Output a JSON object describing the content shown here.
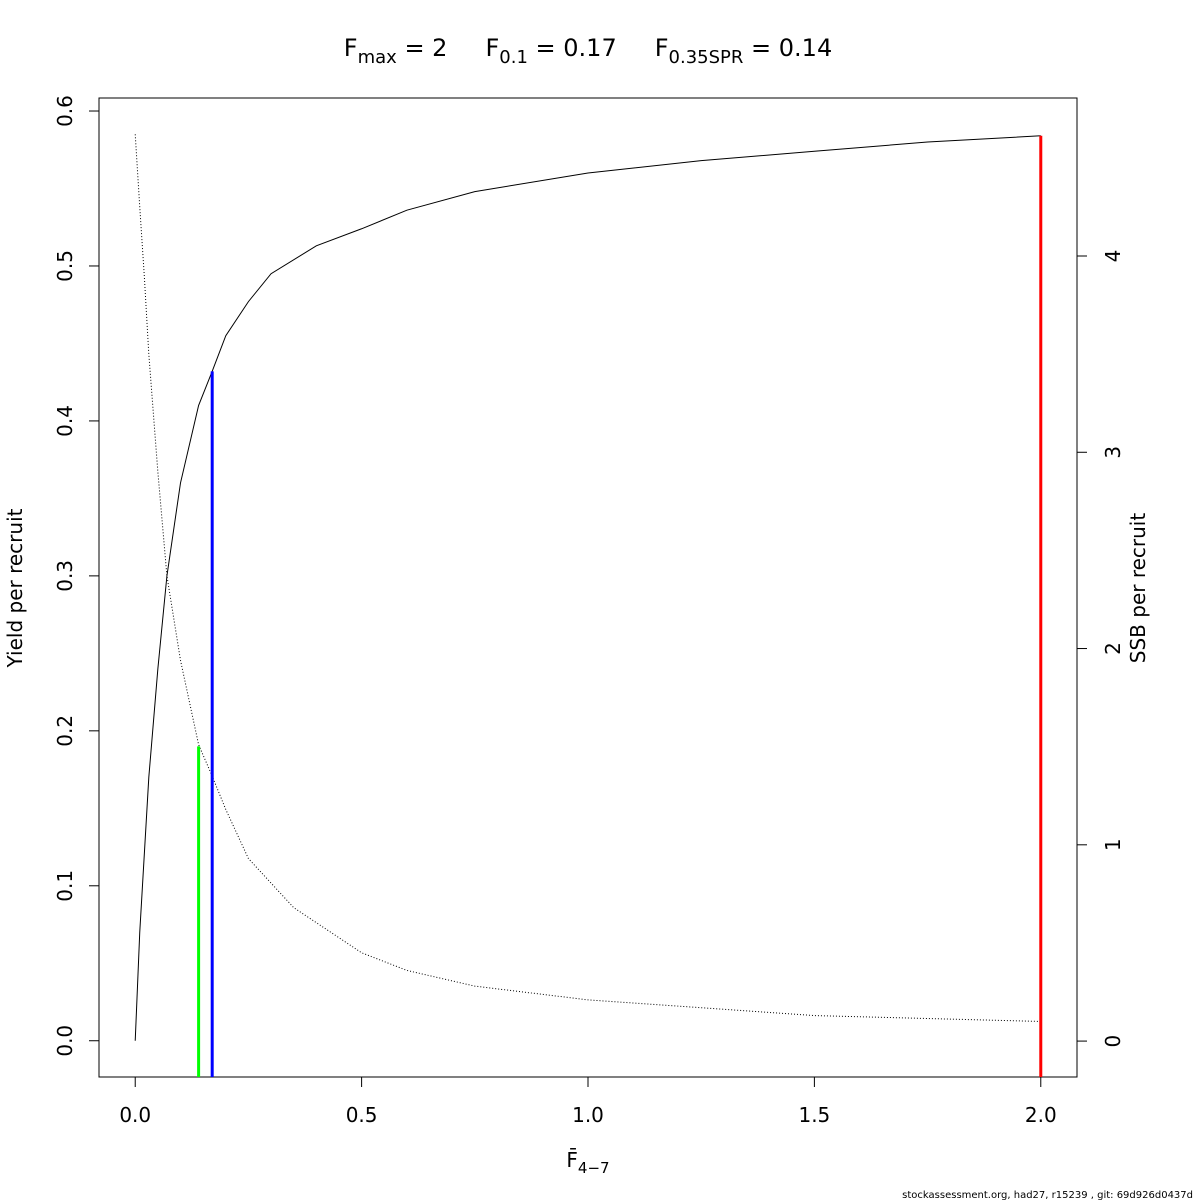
{
  "chart_data": {
    "type": "line",
    "title": [
      {
        "base": "F",
        "sub": "max",
        "rest": " = 2"
      },
      {
        "base": "F",
        "sub": "0.1",
        "rest": " = 0.17"
      },
      {
        "base": "F",
        "sub": "0.35SPR",
        "rest": " = 0.14"
      }
    ],
    "xlabel": {
      "base": "F̄",
      "sub": "4−7"
    },
    "ylabel": "Yield per recruit",
    "y2label": "SSB per recruit",
    "footer": "stockassessment.org, had27, r15239 , git: 69d926d0437d",
    "xlim": [
      -0.08,
      2.08
    ],
    "ylim": [
      -0.0234,
      0.6084
    ],
    "y2lim": [
      -0.183,
      4.805
    ],
    "xticks": [
      {
        "value": 0,
        "label": "0.0"
      },
      0.5,
      {
        "value": 1,
        "label": "1.0"
      },
      1.5,
      {
        "value": 2,
        "label": "2.0"
      }
    ],
    "yticks": [
      {
        "value": 0,
        "label": "0.0"
      },
      0.1,
      0.2,
      0.3,
      0.4,
      0.5,
      0.6
    ],
    "y2ticks": [
      0,
      1,
      2,
      3,
      4
    ],
    "series": [
      {
        "name": "Yield per recruit",
        "color": "#000000",
        "dash": false,
        "x": [
          0,
          0.01,
          0.02,
          0.03,
          0.05,
          0.07,
          0.1,
          0.14,
          0.17,
          0.2,
          0.25,
          0.3,
          0.4,
          0.5,
          0.6,
          0.75,
          1.0,
          1.25,
          1.5,
          1.75,
          2.0
        ],
        "values": [
          0,
          0.07,
          0.12,
          0.17,
          0.24,
          0.3,
          0.36,
          0.41,
          0.432,
          0.455,
          0.477,
          0.495,
          0.513,
          0.524,
          0.536,
          0.548,
          0.56,
          0.568,
          0.574,
          0.58,
          0.584
        ]
      },
      {
        "name": "SSB per recruit",
        "color": "#000000",
        "dash": true,
        "axis": "y2",
        "x": [
          0,
          0.01,
          0.02,
          0.03,
          0.05,
          0.07,
          0.1,
          0.14,
          0.17,
          0.2,
          0.25,
          0.35,
          0.5,
          0.6,
          0.75,
          1.0,
          1.5,
          2.0
        ],
        "values": [
          4.62,
          4.25,
          3.9,
          3.5,
          2.9,
          2.37,
          1.94,
          1.51,
          1.35,
          1.18,
          0.93,
          0.68,
          0.45,
          0.36,
          0.28,
          0.21,
          0.13,
          0.1
        ]
      }
    ],
    "reference_lines": [
      {
        "x": 0.14,
        "value": 0.19,
        "color": "#00ff00"
      },
      {
        "x": 0.17,
        "value": 0.432,
        "color": "#0000ff"
      },
      {
        "x": 2,
        "value": 0.584,
        "color": "#ff0000"
      }
    ]
  }
}
